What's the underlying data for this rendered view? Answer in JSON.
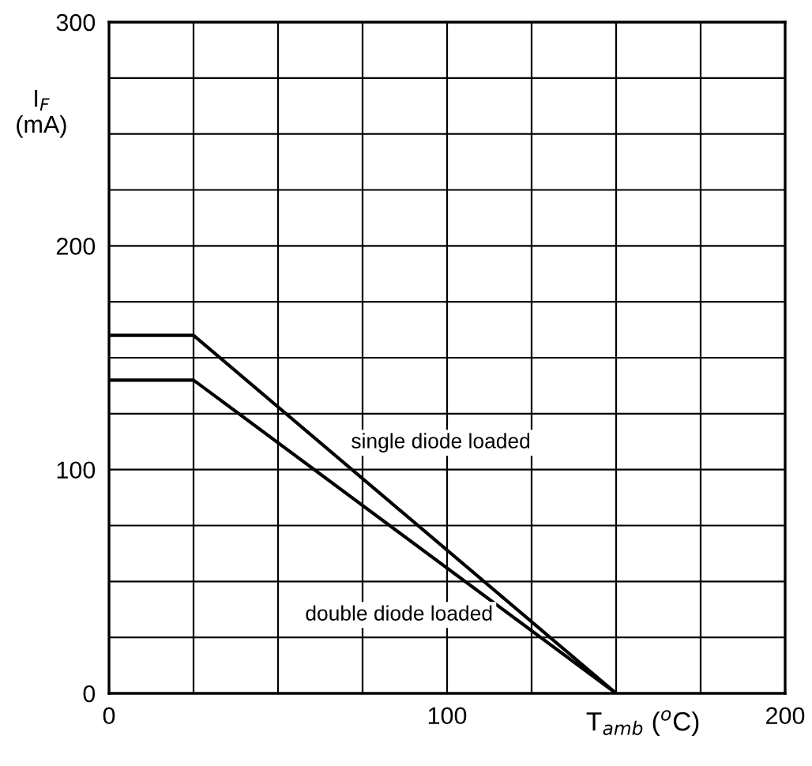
{
  "chart_data": {
    "type": "line",
    "xlabel": "T$_{amb}$ ($^{o}$C)",
    "ylabel": "I$_{F}$\n(mA)",
    "x": [
      0,
      25,
      150
    ],
    "series": [
      {
        "name": "single diode loaded",
        "color": "#000000",
        "values": [
          160,
          160,
          0
        ]
      },
      {
        "name": "double diode loaded",
        "color": "#000000",
        "values": [
          140,
          140,
          0
        ]
      }
    ],
    "xlim": [
      0,
      200
    ],
    "ylim": [
      0,
      300
    ],
    "xticks": [
      0,
      {
        "value": 25,
        "label": null
      },
      {
        "value": 50,
        "label": null
      },
      {
        "value": 75,
        "label": null
      },
      100,
      {
        "value": 125,
        "label": null
      },
      {
        "value": 150,
        "label": null
      },
      {
        "value": 175,
        "label": null
      },
      200
    ],
    "yticks": [
      0,
      {
        "value": 25,
        "label": null
      },
      {
        "value": 50,
        "label": null
      },
      {
        "value": 75,
        "label": null
      },
      100,
      {
        "value": 125,
        "label": null
      },
      {
        "value": 150,
        "label": null
      },
      {
        "value": 175,
        "label": null
      },
      200,
      {
        "value": 225,
        "label": null
      },
      {
        "value": 250,
        "label": null
      },
      {
        "value": 275,
        "label": null
      },
      300
    ],
    "grid": true,
    "legend": false,
    "marker": "none",
    "line_style": "solid"
  }
}
